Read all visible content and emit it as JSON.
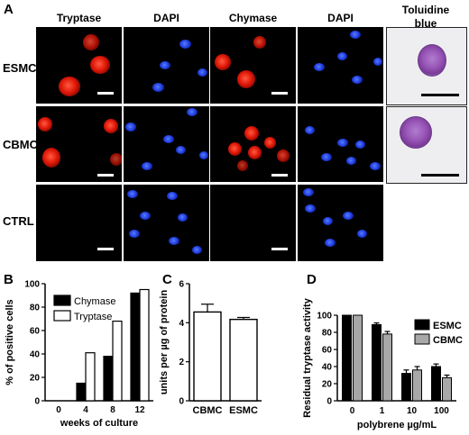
{
  "panel_a": {
    "letter": "A",
    "columns": [
      "Tryptase",
      "DAPI",
      "Chymase",
      "DAPI"
    ],
    "toluidine": "Toluidine blue",
    "rows": [
      "ESMC",
      "CBMC",
      "CTRL"
    ]
  },
  "panel_b": {
    "letter": "B"
  },
  "panel_c": {
    "letter": "C"
  },
  "panel_d": {
    "letter": "D"
  },
  "chart_data": [
    {
      "type": "bar",
      "panel": "B",
      "categories": [
        "0",
        "4",
        "8",
        "12"
      ],
      "series": [
        {
          "name": "Chymase",
          "values": [
            0,
            15,
            38,
            92
          ]
        },
        {
          "name": "Tryptase",
          "values": [
            0,
            41,
            68,
            95
          ]
        }
      ],
      "xlabel": "weeks of culture",
      "ylabel": "% of positive cells",
      "ylim": [
        0,
        100
      ],
      "yticks": [
        "0",
        "20",
        "40",
        "60",
        "80",
        "100"
      ],
      "legend": "top-left",
      "colors": {
        "Chymase": "#000000",
        "Tryptase": "#ffffff"
      }
    },
    {
      "type": "bar",
      "panel": "C",
      "categories": [
        "CBMC",
        "ESMC"
      ],
      "values": [
        4.55,
        4.17
      ],
      "errors": [
        0.4,
        0.1
      ],
      "ylabel": "units per µg of protein",
      "ylim": [
        0,
        6
      ],
      "yticks": [
        "0",
        "2",
        "4",
        "6"
      ]
    },
    {
      "type": "bar",
      "panel": "D",
      "categories": [
        "0",
        "1",
        "10",
        "100"
      ],
      "series": [
        {
          "name": "ESMC",
          "values": [
            100,
            89,
            32,
            40
          ],
          "errors": [
            0,
            2,
            4,
            3
          ]
        },
        {
          "name": "CBMC",
          "values": [
            100,
            78,
            36,
            27
          ],
          "errors": [
            0,
            3,
            4,
            3
          ]
        }
      ],
      "xlabel": "polybrene µg/mL",
      "ylabel": "Residual tryptase activity",
      "ylim": [
        0,
        100
      ],
      "yticks": [
        "0",
        "20",
        "40",
        "60",
        "80",
        "100"
      ],
      "legend": "right",
      "colors": {
        "ESMC": "#000000",
        "CBMC": "#a8a8a8"
      }
    }
  ]
}
